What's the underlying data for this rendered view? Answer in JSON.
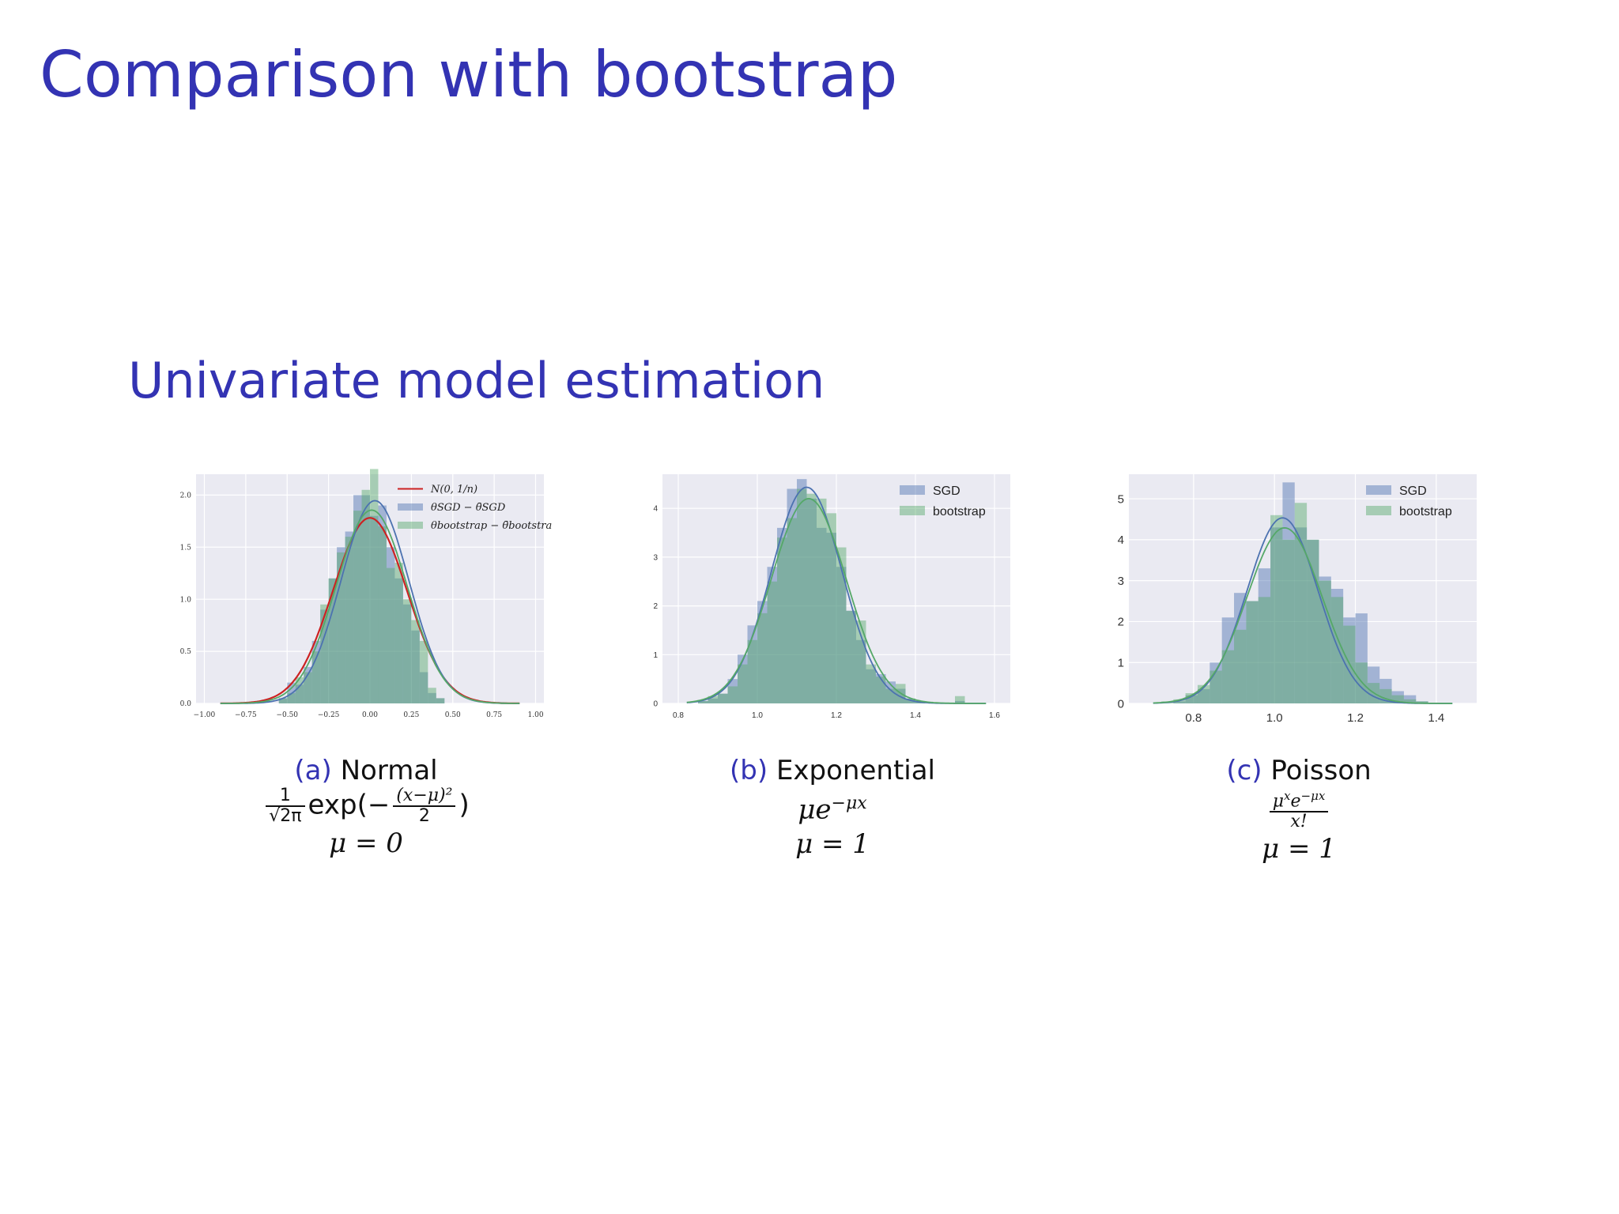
{
  "slide": {
    "title": "Comparison with bootstrap",
    "subtitle": "Univariate model estimation"
  },
  "colors": {
    "heading": "#3333b3",
    "plot_bg": "#eaeaf2",
    "grid": "#ffffff",
    "sgd": "#4c72b0",
    "bootstrap": "#55a868",
    "normal_curve": "#cc2222"
  },
  "captions": [
    {
      "letter": "(a)",
      "name": "Normal",
      "formula_exp": "exp(−",
      "formula_close": ")",
      "formula_num": "(x−μ)²",
      "formula_den": "2",
      "formula_pre_num": "1",
      "formula_pre_den": "√2π",
      "param": "μ = 0"
    },
    {
      "letter": "(b)",
      "name": "Exponential",
      "formula": "μe",
      "formula_sup": "−μx",
      "param": "μ = 1"
    },
    {
      "letter": "(c)",
      "name": "Poisson",
      "formula_num": "μ",
      "formula_num_sup": "x",
      "formula_num_e": "e",
      "formula_num_e_sup": "−μx",
      "formula_den": "x!",
      "param": "μ = 1"
    }
  ],
  "chart_data": [
    {
      "type": "bar",
      "legend_position": "top-right",
      "legend": [
        "N(0, 1/n)",
        "θSGD − θ̄SGD",
        "θbootstrap − θ̄bootstrap"
      ],
      "xlim": [
        -1.05,
        1.05
      ],
      "ylim": [
        0,
        2.2
      ],
      "xticks": [
        -1.0,
        -0.75,
        -0.5,
        -0.25,
        0.0,
        0.25,
        0.5,
        0.75,
        1.0
      ],
      "xtick_labels": [
        "−1.00",
        "−0.75",
        "−0.50",
        "−0.25",
        "0.00",
        "0.25",
        "0.50",
        "0.75",
        "1.00"
      ],
      "yticks": [
        0.0,
        0.5,
        1.0,
        1.5,
        2.0
      ],
      "ytick_labels": [
        "0.0",
        "0.5",
        "1.0",
        "1.5",
        "2.0"
      ],
      "grid": true,
      "bin_edges": [
        -0.55,
        -0.5,
        -0.45,
        -0.4,
        -0.35,
        -0.3,
        -0.25,
        -0.2,
        -0.15,
        -0.1,
        -0.05,
        0.0,
        0.05,
        0.1,
        0.15,
        0.2,
        0.25,
        0.3,
        0.35,
        0.4,
        0.45
      ],
      "series": [
        {
          "name": "θSGD − θ̄SGD",
          "values": [
            0.05,
            0.2,
            0.18,
            0.35,
            0.6,
            0.9,
            1.2,
            1.5,
            1.65,
            2.0,
            2.0,
            1.8,
            1.9,
            1.5,
            1.2,
            0.95,
            0.7,
            0.3,
            0.1,
            0.05
          ]
        },
        {
          "name": "θbootstrap − θ̄bootstrap",
          "values": [
            0.05,
            0.1,
            0.25,
            0.3,
            0.5,
            0.95,
            1.2,
            1.45,
            1.6,
            1.85,
            2.05,
            2.25,
            1.7,
            1.3,
            1.35,
            1.0,
            0.8,
            0.6,
            0.15,
            0.05
          ]
        }
      ],
      "curves": [
        {
          "name": "N(0, 1/n)",
          "kind": "normal",
          "mean": 0.0,
          "sd": 0.224
        },
        {
          "name": "θSGD − θ̄SGD",
          "kind": "normal",
          "mean": 0.03,
          "sd": 0.205
        },
        {
          "name": "θbootstrap − θ̄bootstrap",
          "kind": "normal",
          "mean": 0.01,
          "sd": 0.215
        }
      ]
    },
    {
      "type": "bar",
      "legend_position": "top-right",
      "legend": [
        "SGD",
        "bootstrap"
      ],
      "xlim": [
        0.76,
        1.64
      ],
      "ylim": [
        0,
        4.7
      ],
      "xticks": [
        0.8,
        1.0,
        1.2,
        1.4,
        1.6
      ],
      "xtick_labels": [
        "0.8",
        "1.0",
        "1.2",
        "1.4",
        "1.6"
      ],
      "yticks": [
        0,
        1,
        2,
        3,
        4
      ],
      "ytick_labels": [
        "0",
        "1",
        "2",
        "3",
        "4"
      ],
      "grid": true,
      "bin_edges": [
        0.85,
        0.875,
        0.9,
        0.925,
        0.95,
        0.975,
        1.0,
        1.025,
        1.05,
        1.075,
        1.1,
        1.125,
        1.15,
        1.175,
        1.2,
        1.225,
        1.25,
        1.275,
        1.3,
        1.325,
        1.35,
        1.375,
        1.4,
        1.425,
        1.45,
        1.475,
        1.5,
        1.525,
        1.55
      ],
      "series": [
        {
          "name": "SGD",
          "values": [
            0.05,
            0.1,
            0.2,
            0.5,
            1.0,
            1.6,
            2.1,
            2.8,
            3.6,
            4.4,
            4.6,
            4.2,
            3.6,
            3.5,
            2.8,
            1.9,
            1.3,
            0.7,
            0.6,
            0.45,
            0.3,
            0.1,
            0.05,
            0.0,
            0.0,
            0.0,
            0.05,
            0.0
          ]
        },
        {
          "name": "bootstrap",
          "values": [
            0.05,
            0.15,
            0.2,
            0.35,
            0.8,
            1.3,
            1.85,
            2.5,
            3.4,
            3.8,
            4.4,
            4.3,
            4.2,
            3.9,
            3.2,
            1.9,
            1.7,
            0.8,
            0.55,
            0.3,
            0.4,
            0.1,
            0.05,
            0.0,
            0.0,
            0.0,
            0.15,
            0.0
          ]
        }
      ],
      "curves": [
        {
          "name": "SGD",
          "kind": "normal",
          "mean": 1.125,
          "sd": 0.09
        },
        {
          "name": "bootstrap",
          "kind": "normal",
          "mean": 1.13,
          "sd": 0.095
        }
      ]
    },
    {
      "type": "bar",
      "legend_position": "top-right",
      "legend": [
        "SGD",
        "bootstrap"
      ],
      "xlim": [
        0.64,
        1.5
      ],
      "ylim": [
        0,
        5.6
      ],
      "xticks": [
        0.8,
        1.0,
        1.2,
        1.4
      ],
      "xtick_labels": [
        "0.8",
        "1.0",
        "1.2",
        "1.4"
      ],
      "yticks": [
        0,
        1,
        2,
        3,
        4,
        5
      ],
      "ytick_labels": [
        "0",
        "1",
        "2",
        "3",
        "4",
        "5"
      ],
      "grid": true,
      "bin_edges": [
        0.72,
        0.75,
        0.78,
        0.81,
        0.84,
        0.87,
        0.9,
        0.93,
        0.96,
        0.99,
        1.02,
        1.05,
        1.08,
        1.11,
        1.14,
        1.17,
        1.2,
        1.23,
        1.26,
        1.29,
        1.32,
        1.35,
        1.38,
        1.41
      ],
      "series": [
        {
          "name": "SGD",
          "values": [
            0.0,
            0.05,
            0.2,
            0.35,
            1.0,
            2.1,
            2.7,
            2.5,
            3.3,
            4.3,
            5.4,
            4.3,
            4.0,
            3.1,
            2.8,
            2.1,
            2.2,
            0.9,
            0.6,
            0.3,
            0.2,
            0.05,
            0.0
          ]
        },
        {
          "name": "bootstrap",
          "values": [
            0.05,
            0.1,
            0.25,
            0.45,
            0.8,
            1.3,
            1.8,
            2.5,
            2.6,
            4.6,
            4.0,
            4.9,
            4.0,
            3.0,
            2.6,
            1.9,
            1.0,
            0.5,
            0.35,
            0.2,
            0.1,
            0.05,
            0.0
          ]
        }
      ],
      "curves": [
        {
          "name": "SGD",
          "kind": "normal",
          "mean": 1.02,
          "sd": 0.088
        },
        {
          "name": "bootstrap",
          "kind": "normal",
          "mean": 1.025,
          "sd": 0.093
        }
      ]
    }
  ]
}
